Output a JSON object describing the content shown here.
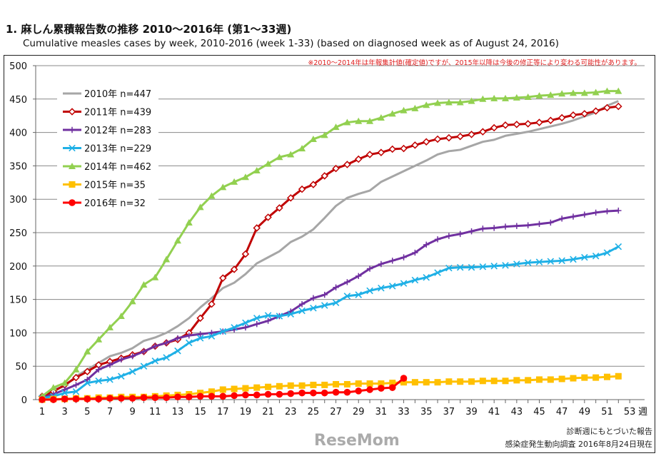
{
  "title": "1. 麻しん累積報告数の推移  2010～2016年 (第1～33週)",
  "subtitle": "Cumulative measles cases by week, 2010-2016 (week 1-33)  (based on diagnosed week as of August 24, 2016)",
  "note": "※2010～2014年は年報集計値(確定値)ですが、2015年以降は今後の修正等により変わる可能性があります。",
  "footer": {
    "line1": "診断週にもとづいた報告",
    "line2": "感染症発生動向調査 2016年8月24日現在"
  },
  "watermark": "ReseMom",
  "chart_data": {
    "type": "line",
    "title": "",
    "xlabel": "週",
    "ylabel": "",
    "ylim": [
      0,
      500
    ],
    "yticks": [
      0,
      50,
      100,
      150,
      200,
      250,
      300,
      350,
      400,
      450,
      500
    ],
    "xlim": [
      1,
      53
    ],
    "xticks": [
      1,
      3,
      5,
      7,
      9,
      11,
      13,
      15,
      17,
      19,
      21,
      23,
      25,
      27,
      29,
      31,
      33,
      35,
      37,
      39,
      41,
      43,
      45,
      47,
      49,
      51,
      53
    ],
    "grid": true,
    "legend_position": "top-left",
    "series": [
      {
        "name": "2010年 n=447",
        "color": "#a6a6a6",
        "marker": "none",
        "values": [
          5,
          15,
          20,
          35,
          45,
          55,
          65,
          70,
          77,
          88,
          93,
          100,
          110,
          122,
          138,
          152,
          167,
          175,
          188,
          204,
          213,
          222,
          236,
          244,
          255,
          272,
          290,
          302,
          308,
          313,
          326,
          334,
          342,
          350,
          358,
          367,
          372,
          374,
          380,
          386,
          389,
          395,
          398,
          401,
          405,
          409,
          413,
          418,
          424,
          430,
          440,
          447
        ]
      },
      {
        "name": "2011年 n=439",
        "color": "#c00000",
        "marker": "diamond",
        "values": [
          5,
          12,
          22,
          33,
          42,
          52,
          57,
          62,
          67,
          72,
          80,
          85,
          90,
          100,
          122,
          143,
          182,
          195,
          218,
          257,
          273,
          287,
          302,
          315,
          322,
          335,
          346,
          352,
          360,
          367,
          370,
          375,
          376,
          381,
          386,
          390,
          392,
          394,
          397,
          401,
          407,
          411,
          412,
          413,
          415,
          418,
          422,
          426,
          428,
          432,
          437,
          439
        ]
      },
      {
        "name": "2012年 n=283",
        "color": "#7030a0",
        "marker": "plus",
        "values": [
          3,
          8,
          15,
          22,
          30,
          45,
          52,
          60,
          65,
          72,
          80,
          85,
          92,
          96,
          98,
          100,
          102,
          105,
          108,
          113,
          118,
          125,
          132,
          143,
          152,
          157,
          168,
          176,
          185,
          196,
          203,
          208,
          213,
          220,
          232,
          240,
          245,
          248,
          252,
          256,
          257,
          259,
          260,
          261,
          263,
          265,
          271,
          274,
          277,
          280,
          282,
          283
        ]
      },
      {
        "name": "2013年 n=229",
        "color": "#1fb0e6",
        "marker": "x",
        "values": [
          2,
          5,
          10,
          12,
          25,
          28,
          30,
          35,
          42,
          50,
          58,
          63,
          73,
          85,
          92,
          95,
          102,
          108,
          115,
          122,
          126,
          125,
          128,
          133,
          137,
          141,
          145,
          155,
          157,
          163,
          167,
          170,
          174,
          179,
          183,
          190,
          197,
          198,
          198,
          199,
          200,
          201,
          203,
          205,
          206,
          207,
          208,
          210,
          213,
          215,
          220,
          229
        ]
      },
      {
        "name": "2014年 n=462",
        "color": "#92d050",
        "marker": "triangle",
        "values": [
          5,
          18,
          25,
          45,
          72,
          90,
          108,
          125,
          147,
          172,
          183,
          210,
          238,
          265,
          288,
          305,
          318,
          326,
          333,
          343,
          353,
          363,
          367,
          376,
          390,
          396,
          408,
          415,
          417,
          417,
          422,
          428,
          433,
          436,
          441,
          444,
          445,
          445,
          447,
          450,
          451,
          451,
          452,
          453,
          455,
          456,
          458,
          459,
          459,
          460,
          462,
          462
        ]
      },
      {
        "name": "2015年 n=35",
        "color": "#ffc000",
        "marker": "square",
        "values": [
          0,
          1,
          1,
          2,
          2,
          3,
          3,
          4,
          4,
          4,
          5,
          6,
          7,
          8,
          10,
          12,
          15,
          16,
          17,
          18,
          19,
          20,
          21,
          21,
          22,
          22,
          23,
          23,
          24,
          24,
          24,
          25,
          26,
          26,
          26,
          26,
          27,
          27,
          27,
          28,
          28,
          28,
          29,
          29,
          30,
          30,
          31,
          32,
          33,
          33,
          34,
          35
        ]
      },
      {
        "name": "2016年 n=32",
        "color": "#ff0000",
        "marker": "circle",
        "values": [
          0,
          0,
          1,
          1,
          1,
          1,
          2,
          2,
          2,
          3,
          3,
          3,
          4,
          4,
          5,
          5,
          5,
          6,
          7,
          7,
          8,
          8,
          9,
          10,
          10,
          10,
          11,
          11,
          13,
          15,
          17,
          18,
          32
        ]
      }
    ]
  }
}
